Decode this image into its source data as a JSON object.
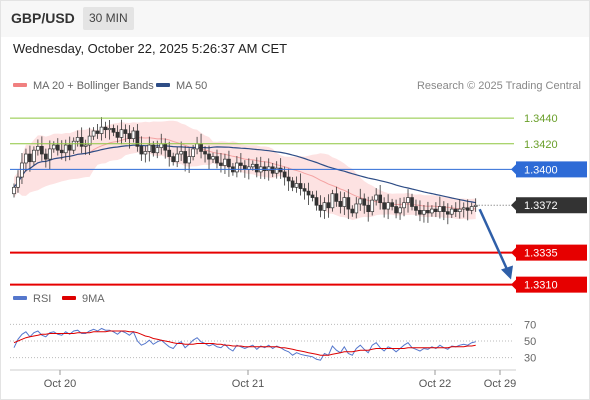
{
  "header": {
    "symbol": "GBP/USD",
    "timeframe": "30 MIN"
  },
  "datetime": "Wednesday, October 22, 2025 5:26:37 AM CET",
  "legend": [
    {
      "label": "MA 20 + Bollinger Bands",
      "color": "#f08080"
    },
    {
      "label": "MA 50",
      "color": "#2e4d86"
    }
  ],
  "credit": "Research © 2025 Trading Central",
  "rsi_legend": [
    {
      "label": "RSI",
      "color": "#5577cc"
    },
    {
      "label": "9MA",
      "color": "#dd0000"
    }
  ],
  "colors": {
    "bollinger_fill": "#fde2e2",
    "ma50": "#2e4d86",
    "target": "#8dc63f",
    "pivot": "#2e6bd6",
    "support": "#e60000",
    "arrow": "#2f5fa8",
    "candle": "#333333",
    "current_price": "#333333"
  },
  "chart_data": {
    "type": "candlestick",
    "x_ticks": [
      "Oct 20",
      "Oct 21",
      "Oct 22",
      "Oct 29"
    ],
    "ylim": [
      1.3298,
      1.3462
    ],
    "current_price": "1.3372",
    "levels": [
      {
        "value": 1.344,
        "label": "1.3440",
        "kind": "target"
      },
      {
        "value": 1.342,
        "label": "1.3420",
        "kind": "target"
      },
      {
        "value": 1.34,
        "label": "1.3400",
        "kind": "pivot"
      },
      {
        "value": 1.3335,
        "label": "1.3335",
        "kind": "support"
      },
      {
        "value": 1.331,
        "label": "1.3310",
        "kind": "support"
      }
    ],
    "close": [
      1.3386,
      1.3394,
      1.3405,
      1.3412,
      1.3406,
      1.3415,
      1.3418,
      1.3412,
      1.3408,
      1.3416,
      1.3419,
      1.3415,
      1.3413,
      1.3419,
      1.3415,
      1.3422,
      1.3425,
      1.3418,
      1.3419,
      1.3426,
      1.343,
      1.3428,
      1.3433,
      1.3431,
      1.3432,
      1.3429,
      1.3425,
      1.3431,
      1.3428,
      1.3424,
      1.343,
      1.3418,
      1.3412,
      1.3414,
      1.3419,
      1.3413,
      1.3417,
      1.342,
      1.3415,
      1.341,
      1.3406,
      1.3412,
      1.3414,
      1.3405,
      1.341,
      1.3416,
      1.342,
      1.3414,
      1.3412,
      1.3408,
      1.341,
      1.3405,
      1.3403,
      1.3408,
      1.3402,
      1.3398,
      1.3405,
      1.3403,
      1.34,
      1.3402,
      1.3404,
      1.3398,
      1.3402,
      1.3399,
      1.3402,
      1.3397,
      1.3401,
      1.3398,
      1.3394,
      1.3391,
      1.3386,
      1.3389,
      1.3385,
      1.3383,
      1.338,
      1.3378,
      1.3372,
      1.3368,
      1.3374,
      1.337,
      1.3381,
      1.3375,
      1.3371,
      1.3378,
      1.3369,
      1.3366,
      1.3373,
      1.3377,
      1.3372,
      1.3367,
      1.3376,
      1.338,
      1.3374,
      1.3369,
      1.3374,
      1.3371,
      1.3366,
      1.337,
      1.3374,
      1.3378,
      1.3371,
      1.3368,
      1.3365,
      1.3368,
      1.3366,
      1.3369,
      1.3367,
      1.3371,
      1.3367,
      1.3365,
      1.3369,
      1.3367,
      1.3369,
      1.337,
      1.3368,
      1.3371,
      1.3372
    ],
    "ma50_end": 1.3374,
    "rsi": {
      "ticks": [
        "70",
        "50",
        "30"
      ],
      "ylim": [
        20,
        80
      ],
      "rsi_values": [
        42,
        52,
        58,
        61,
        55,
        60,
        62,
        57,
        55,
        60,
        61,
        58,
        57,
        61,
        58,
        62,
        63,
        59,
        59,
        62,
        64,
        62,
        65,
        63,
        63,
        61,
        58,
        62,
        60,
        57,
        61,
        50,
        45,
        47,
        51,
        46,
        49,
        51,
        47,
        43,
        41,
        47,
        49,
        42,
        46,
        51,
        54,
        49,
        47,
        44,
        46,
        43,
        42,
        46,
        41,
        38,
        45,
        43,
        41,
        43,
        45,
        40,
        44,
        42,
        45,
        41,
        44,
        42,
        39,
        37,
        33,
        36,
        34,
        33,
        32,
        31,
        28,
        27,
        35,
        33,
        44,
        39,
        36,
        43,
        35,
        33,
        41,
        45,
        40,
        36,
        45,
        48,
        42,
        38,
        43,
        41,
        37,
        41,
        45,
        48,
        42,
        40,
        38,
        41,
        40,
        43,
        41,
        45,
        42,
        40,
        44,
        43,
        45,
        46,
        45,
        48,
        49
      ],
      "ma_values": [
        48,
        50,
        52,
        54,
        55,
        56,
        57,
        58,
        58,
        59,
        59,
        59,
        59,
        59,
        59,
        59,
        60,
        60,
        60,
        60,
        61,
        61,
        61,
        61,
        62,
        62,
        62,
        62,
        62,
        61,
        61,
        60,
        58,
        56,
        55,
        53,
        52,
        51,
        50,
        49,
        48,
        47,
        47,
        46,
        46,
        46,
        47,
        47,
        47,
        47,
        47,
        46,
        46,
        45,
        45,
        44,
        44,
        44,
        43,
        43,
        43,
        43,
        43,
        43,
        43,
        43,
        43,
        42,
        42,
        41,
        40,
        39,
        38,
        37,
        36,
        35,
        34,
        33,
        33,
        33,
        34,
        35,
        36,
        37,
        37,
        37,
        38,
        39,
        39,
        39,
        40,
        41,
        41,
        41,
        41,
        41,
        41,
        41,
        41,
        42,
        42,
        42,
        42,
        42,
        42,
        42,
        42,
        42,
        42,
        42,
        43,
        43,
        43,
        43,
        44,
        44,
        45
      ]
    }
  }
}
